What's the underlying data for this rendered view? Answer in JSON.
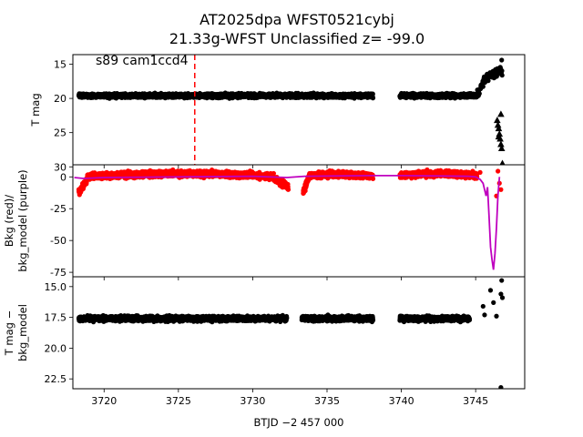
{
  "figure": {
    "title_line1": "AT2025dpa  WFST0521cybj",
    "title_line2": "21.33g-WFST Unclassified z= -99.0",
    "annotation": "s89 cam1ccd4",
    "colors": {
      "data": "#000000",
      "bkg": "#ff0000",
      "bkg_model": "#bf00bf",
      "marker_line": "#ff0000"
    }
  },
  "chart_data": [
    {
      "type": "scatter",
      "xlabel": "",
      "ylabel": "T mag",
      "y_inverted": true,
      "xlim": [
        3717.9,
        3748.3
      ],
      "ylim": [
        29.7,
        13.6
      ],
      "yticks": [
        15,
        20,
        25,
        30
      ],
      "marker_x": 3726.1,
      "annotation": "s89 cam1ccd4",
      "segments": [
        {
          "x_start": 3718.3,
          "x_end": 3738.1,
          "y_center": 19.6,
          "scatter": 0.5
        },
        {
          "x_start": 3739.9,
          "x_end": 3745.1,
          "y_center": 19.6,
          "scatter": 0.5
        }
      ],
      "rise": [
        [
          3745.2,
          19.2
        ],
        [
          3745.4,
          18.2
        ],
        [
          3745.6,
          17.3
        ],
        [
          3745.8,
          16.8
        ],
        [
          3746.0,
          16.5
        ],
        [
          3746.2,
          16.4
        ],
        [
          3746.4,
          16.2
        ],
        [
          3746.6,
          16.1
        ],
        [
          3746.7,
          16.0
        ]
      ],
      "triangles": [
        [
          3746.45,
          23.2
        ],
        [
          3746.5,
          23.9
        ],
        [
          3746.55,
          24.4
        ],
        [
          3746.6,
          25.2
        ],
        [
          3746.65,
          25.9
        ],
        [
          3746.7,
          26.7
        ],
        [
          3746.75,
          27.3
        ],
        [
          3746.8,
          29.5
        ],
        [
          3746.7,
          22.3
        ],
        [
          3746.55,
          25.6
        ]
      ],
      "points": [
        [
          3746.75,
          14.4
        ]
      ]
    },
    {
      "type": "scatter",
      "xlabel": "",
      "ylabel": "Bkg (red)/\nbkg_model (purple)",
      "xlim": [
        3717.9,
        3748.3
      ],
      "ylim": [
        -78.5,
        9.5
      ],
      "yticks": [
        0,
        -25,
        -50,
        -75
      ],
      "series": [
        {
          "name": "Bkg",
          "color": "#ff0000",
          "segments": [
            {
              "x_start": 3718.3,
              "x_end": 3732.4,
              "shape": "orbit1"
            },
            {
              "x_start": 3733.4,
              "x_end": 3738.1,
              "shape": "orbit2"
            },
            {
              "x_start": 3739.9,
              "x_end": 3745.1,
              "shape": "orbit3"
            }
          ],
          "points": [
            [
              3745.3,
              3.5
            ],
            [
              3746.5,
              4.5
            ],
            [
              3746.6,
              -5
            ],
            [
              3746.7,
              -10
            ],
            [
              3746.4,
              -15
            ]
          ]
        },
        {
          "name": "bkg_model",
          "color": "#bf00bf",
          "line": [
            [
              3718.0,
              -0.5
            ],
            [
              3718.6,
              -1.2
            ],
            [
              3720.0,
              -0.5
            ],
            [
              3725.0,
              0.0
            ],
            [
              3730.0,
              0.5
            ],
            [
              3732.3,
              -0.5
            ],
            [
              3733.5,
              0.5
            ],
            [
              3738.0,
              1.0
            ],
            [
              3740.0,
              1.0
            ],
            [
              3744.5,
              0.5
            ],
            [
              3745.0,
              0.0
            ],
            [
              3745.3,
              -2.0
            ],
            [
              3745.5,
              -5.0
            ],
            [
              3745.7,
              -15.0
            ],
            [
              3745.8,
              -8.0
            ],
            [
              3745.9,
              -30.0
            ],
            [
              3746.0,
              -55.0
            ],
            [
              3746.1,
              -65.0
            ],
            [
              3746.2,
              -73.0
            ],
            [
              3746.3,
              -60.0
            ],
            [
              3746.4,
              -40.0
            ],
            [
              3746.5,
              -15.0
            ],
            [
              3746.6,
              0.0
            ]
          ]
        }
      ]
    },
    {
      "type": "scatter",
      "xlabel": "BTJD −2 457 000",
      "ylabel": "T mag −\nbkg_model",
      "y_inverted": true,
      "xlim": [
        3717.9,
        3748.3
      ],
      "ylim": [
        23.3,
        14.2
      ],
      "yticks": [
        15.0,
        17.5,
        20.0,
        22.5
      ],
      "xticks": [
        3720,
        3725,
        3730,
        3735,
        3740,
        3745
      ],
      "segments": [
        {
          "x_start": 3718.3,
          "x_end": 3732.3,
          "y_center": 17.6,
          "scatter": 0.35
        },
        {
          "x_start": 3733.3,
          "x_end": 3738.1,
          "y_center": 17.6,
          "scatter": 0.35
        },
        {
          "x_start": 3739.9,
          "x_end": 3744.6,
          "y_center": 17.6,
          "scatter": 0.35
        }
      ],
      "points": [
        [
          3745.5,
          16.6
        ],
        [
          3745.6,
          17.3
        ],
        [
          3746.0,
          15.3
        ],
        [
          3746.2,
          16.3
        ],
        [
          3746.4,
          17.4
        ],
        [
          3746.7,
          15.6
        ],
        [
          3746.75,
          14.5
        ],
        [
          3746.8,
          15.9
        ],
        [
          3746.7,
          23.2
        ]
      ]
    }
  ]
}
